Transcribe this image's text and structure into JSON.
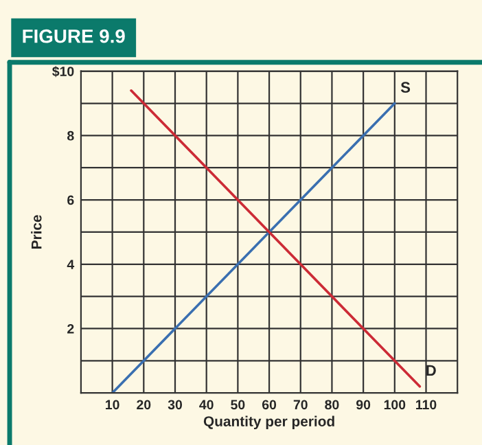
{
  "chart_data": {
    "type": "line",
    "title": "FIGURE 9.9",
    "xlabel": "Quantity per period",
    "ylabel": "Price",
    "series": [
      {
        "name": "S",
        "color": "#3a6fb0",
        "x": [
          10,
          100
        ],
        "values": [
          0,
          9
        ]
      },
      {
        "name": "D",
        "color": "#cc2b36",
        "x": [
          16,
          108
        ],
        "values": [
          9.4,
          0.2
        ]
      }
    ],
    "xlim": [
      0,
      120
    ],
    "xticks": [
      10,
      20,
      30,
      40,
      50,
      60,
      70,
      80,
      90,
      100,
      110
    ],
    "ylim": [
      0,
      10
    ],
    "yticks": [
      {
        "value": 1,
        "label": null
      },
      2,
      {
        "value": 3,
        "label": null
      },
      4,
      {
        "value": 5,
        "label": null
      },
      6,
      {
        "value": 7,
        "label": null
      },
      8,
      {
        "value": 9,
        "label": null
      },
      {
        "value": 10,
        "label": "$10"
      }
    ],
    "grid": true,
    "legend": false,
    "marker": "none",
    "line_style": "solid"
  }
}
